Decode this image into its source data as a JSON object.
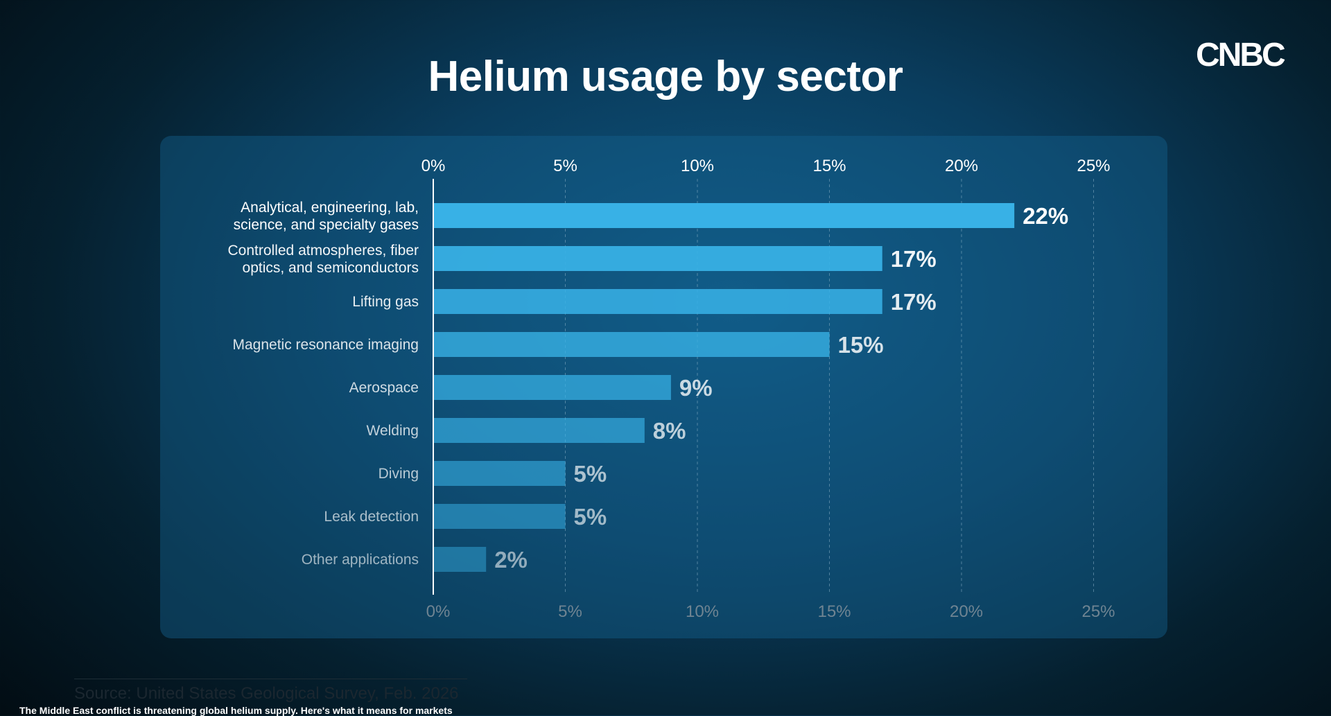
{
  "logo": "CNBC",
  "footer": "The Middle East conflict is threatening global helium supply. Here's what it means for markets",
  "colors": {
    "bar": "#38b1e6",
    "axis": "#ffffff",
    "grid": "#7fa7bf"
  },
  "chart_data": {
    "type": "bar",
    "orientation": "horizontal",
    "title": "Helium usage by sector",
    "source": "Source: United States Geological Survey, Feb. 2026",
    "xlim": [
      0,
      25
    ],
    "xticks": [
      "0%",
      "5%",
      "10%",
      "15%",
      "20%",
      "25%"
    ],
    "grid": true,
    "categories": [
      [
        "Analytical, engineering, lab,",
        "science, and specialty gases"
      ],
      [
        "Controlled atmospheres, fiber",
        "optics, and semiconductors"
      ],
      [
        "Lifting gas"
      ],
      [
        "Magnetic resonance imaging"
      ],
      [
        "Aerospace"
      ],
      [
        "Welding"
      ],
      [
        "Diving"
      ],
      [
        "Leak detection"
      ],
      [
        "Other applications"
      ]
    ],
    "values": [
      22,
      17,
      17,
      15,
      9,
      8,
      5,
      5,
      2
    ],
    "value_labels": [
      "22%",
      "17%",
      "17%",
      "15%",
      "9%",
      "8%",
      "5%",
      "5%",
      "2%"
    ]
  }
}
